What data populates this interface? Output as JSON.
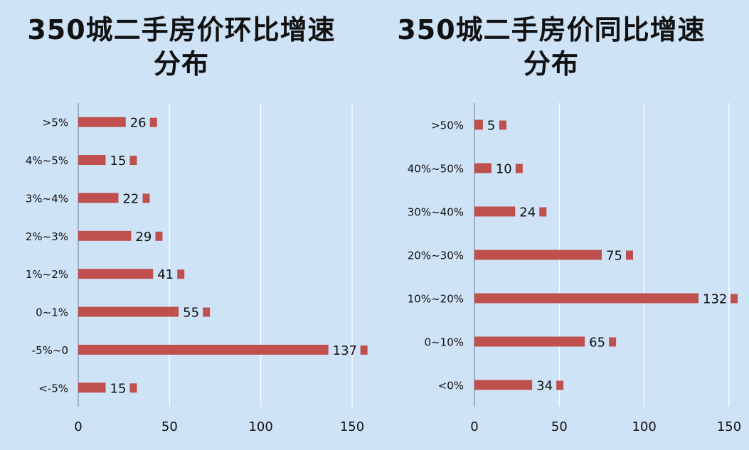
{
  "chart_data": [
    {
      "type": "bar",
      "orientation": "horizontal",
      "title": "350城二手房价环比增速分布",
      "categories": [
        ">5%",
        "4%~5%",
        "3%~4%",
        "2%~3%",
        "1%~2%",
        "0~1%",
        "-5%~0",
        "<-5%"
      ],
      "values": [
        26,
        15,
        22,
        29,
        41,
        55,
        137,
        15
      ],
      "xlim": [
        0,
        150
      ],
      "xticks": [
        0,
        50,
        100,
        150
      ],
      "grid": true,
      "color": "#c0504d"
    },
    {
      "type": "bar",
      "orientation": "horizontal",
      "title": "350城二手房价同比增速分布",
      "categories": [
        ">50%",
        "40%~50%",
        "30%~40%",
        "20%~30%",
        "10%~20%",
        "0~10%",
        "<0%"
      ],
      "values": [
        5,
        10,
        24,
        75,
        132,
        65,
        34
      ],
      "xlim": [
        0,
        150
      ],
      "xticks": [
        0,
        50,
        100,
        150
      ],
      "grid": true,
      "color": "#c0504d"
    }
  ]
}
